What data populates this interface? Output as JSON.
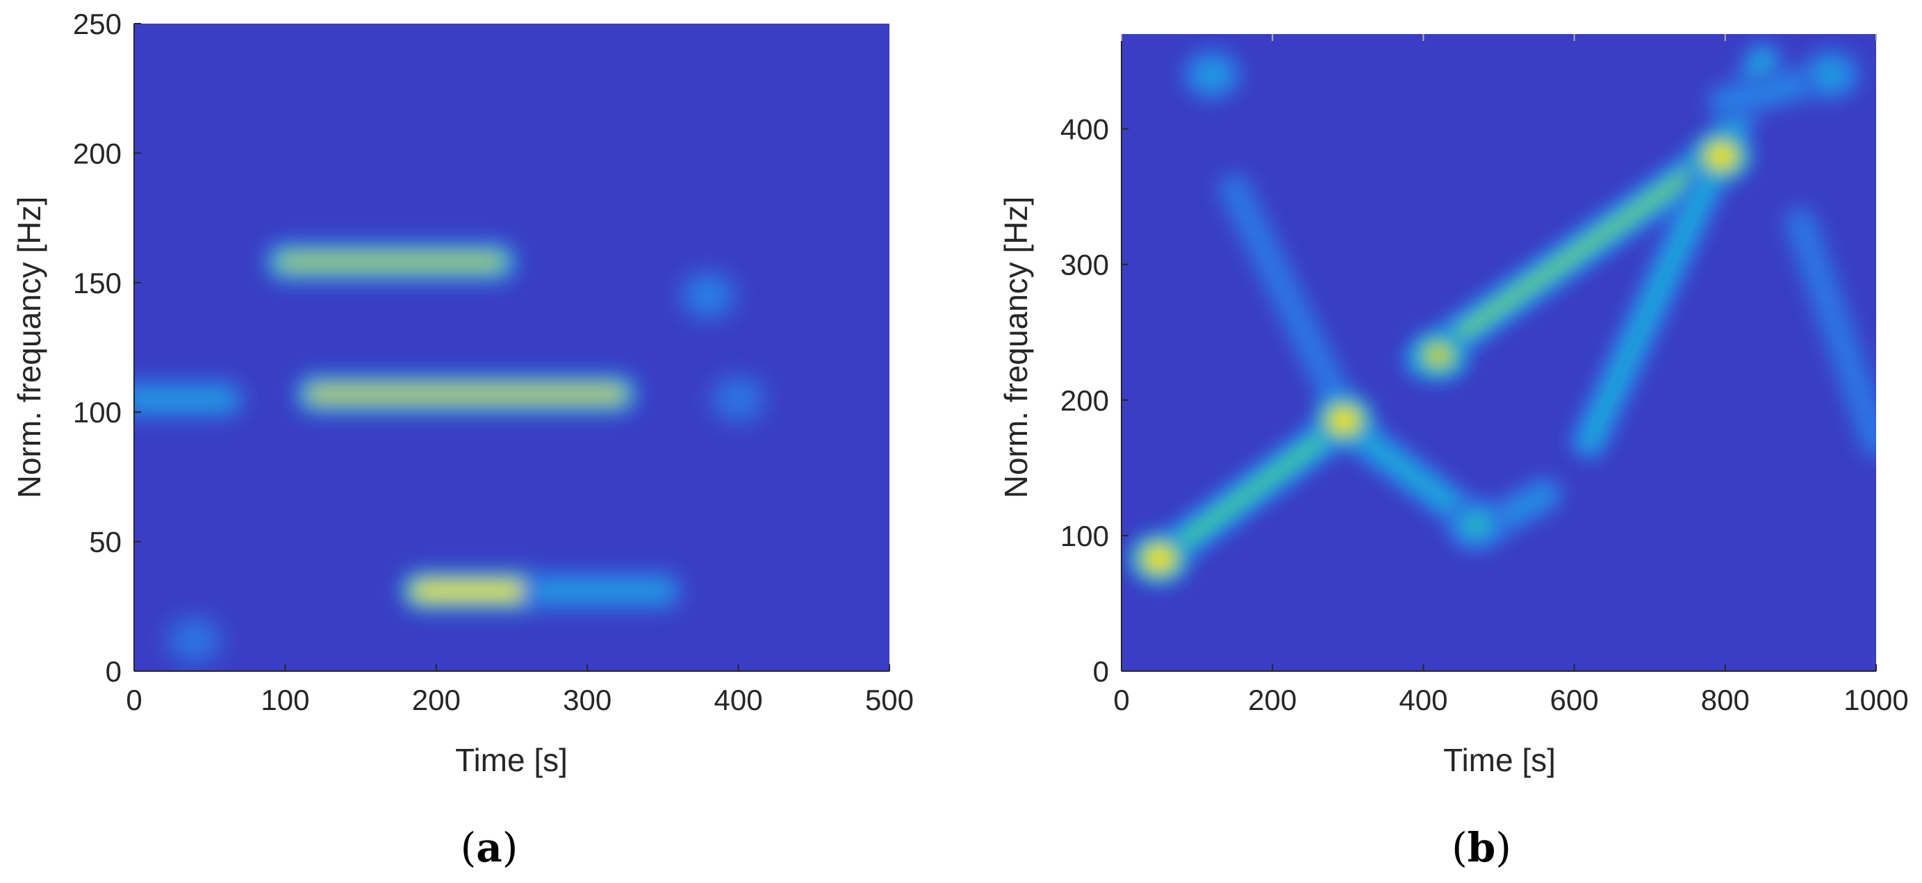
{
  "chart_data": [
    {
      "type": "heatmap",
      "panel_label": "a",
      "xlabel": "Time [s]",
      "ylabel": "Norm. frequancy [Hz]",
      "xlim": [
        0,
        500
      ],
      "ylim": [
        0,
        250
      ],
      "xticks": [
        0,
        100,
        200,
        300,
        400,
        500
      ],
      "yticks": [
        0,
        50,
        100,
        150,
        200,
        250
      ],
      "colormap": "parula",
      "background_color": "#3a3ec4",
      "features": [
        {
          "kind": "ridge",
          "t_start": 100,
          "t_end": 240,
          "f_start": 158,
          "f_end": 158,
          "peak": 0.8
        },
        {
          "kind": "ridge",
          "t_start": 120,
          "t_end": 320,
          "f_start": 107,
          "f_end": 107,
          "peak": 0.85
        },
        {
          "kind": "ridge",
          "t_start": 190,
          "t_end": 290,
          "f_start": 31,
          "f_end": 31,
          "peak": 1.0
        },
        {
          "kind": "ridge",
          "t_start": 270,
          "t_end": 350,
          "f_start": 31,
          "f_end": 31,
          "peak": 0.45
        },
        {
          "kind": "ridge",
          "t_start": 0,
          "t_end": 60,
          "f_start": 105,
          "f_end": 105,
          "peak": 0.45
        },
        {
          "kind": "blob",
          "t": 380,
          "f": 145,
          "peak": 0.35
        },
        {
          "kind": "blob",
          "t": 40,
          "f": 12,
          "peak": 0.3
        },
        {
          "kind": "blob",
          "t": 400,
          "f": 105,
          "peak": 0.3
        }
      ]
    },
    {
      "type": "heatmap",
      "panel_label": "b",
      "xlabel": "Time [s]",
      "ylabel": "Norm. frequancy [Hz]",
      "xlim": [
        0,
        1000
      ],
      "ylim": [
        0,
        470
      ],
      "xticks": [
        0,
        200,
        400,
        600,
        800,
        1000
      ],
      "yticks": [
        0,
        100,
        200,
        300,
        400
      ],
      "colormap": "parula",
      "background_color": "#3a3ec4",
      "features": [
        {
          "kind": "ridge",
          "t_start": 50,
          "t_end": 300,
          "f_start": 83,
          "f_end": 185,
          "peak": 0.65
        },
        {
          "kind": "ridge",
          "t_start": 400,
          "t_end": 800,
          "f_start": 230,
          "f_end": 385,
          "peak": 0.7
        },
        {
          "kind": "ridge",
          "t_start": 300,
          "t_end": 480,
          "f_start": 180,
          "f_end": 105,
          "peak": 0.5
        },
        {
          "kind": "ridge",
          "t_start": 480,
          "t_end": 560,
          "f_start": 105,
          "f_end": 130,
          "peak": 0.4
        },
        {
          "kind": "ridge",
          "t_start": 620,
          "t_end": 850,
          "f_start": 170,
          "f_end": 450,
          "peak": 0.5
        },
        {
          "kind": "ridge",
          "t_start": 150,
          "t_end": 300,
          "f_start": 355,
          "f_end": 185,
          "peak": 0.3
        },
        {
          "kind": "ridge",
          "t_start": 800,
          "t_end": 950,
          "f_start": 420,
          "f_end": 440,
          "peak": 0.35
        },
        {
          "kind": "ridge",
          "t_start": 900,
          "t_end": 1000,
          "f_start": 330,
          "f_end": 170,
          "peak": 0.3
        },
        {
          "kind": "blob",
          "t": 50,
          "f": 83,
          "peak": 1.0
        },
        {
          "kind": "blob",
          "t": 295,
          "f": 185,
          "peak": 1.0
        },
        {
          "kind": "blob",
          "t": 420,
          "f": 233,
          "peak": 0.85
        },
        {
          "kind": "blob",
          "t": 795,
          "f": 380,
          "peak": 1.0
        },
        {
          "kind": "blob",
          "t": 120,
          "f": 440,
          "peak": 0.45
        },
        {
          "kind": "blob",
          "t": 940,
          "f": 440,
          "peak": 0.45
        },
        {
          "kind": "blob",
          "t": 470,
          "f": 108,
          "peak": 0.55
        }
      ]
    }
  ]
}
